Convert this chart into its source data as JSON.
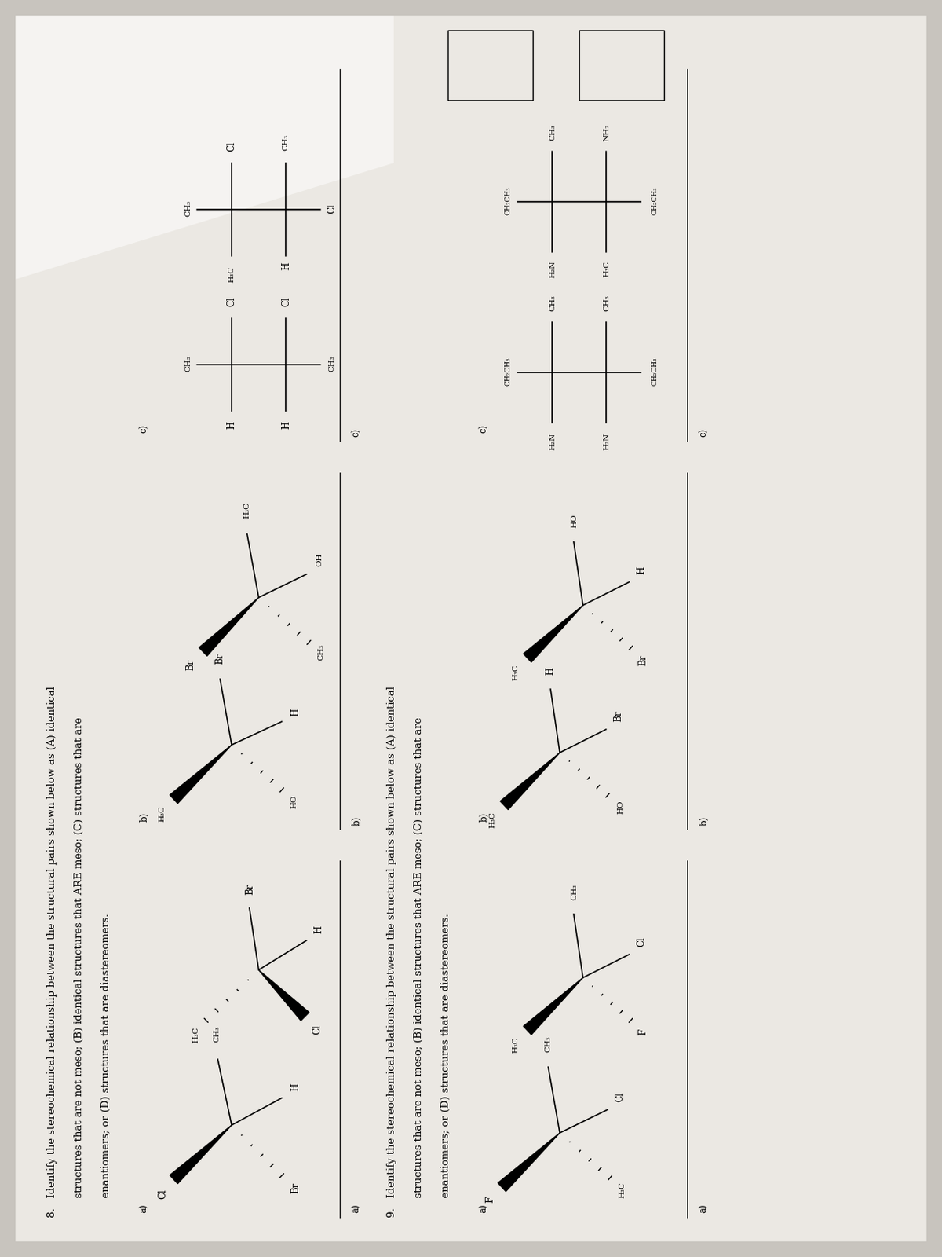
{
  "bg_color": "#c8c4be",
  "page_color": "#ebe8e3",
  "glare_color": "#ffffff",
  "text_color": "#1a1a1a",
  "fs_title": 9.5,
  "fs_body": 8.5,
  "fs_small": 7.5,
  "fs_tiny": 6.5,
  "rotation": 90,
  "q8_line1": "8.   Identify the stereochemical relationship between the structural pairs shown below as (A) identical",
  "q8_line2": "      structures that are not meso; (B) identical structures that ARE meso; (C) structures that are",
  "q8_line3": "      enantiomers; or (D) structures that are diastereomers.",
  "q9_line1": "9.   Identify the stereochemical relationship between the structural pairs shown below as (A) identical",
  "q9_line2": "      structures that are not meso; (B) identical structures that ARE meso; (C) structures that are",
  "q9_line3": "      enantiomers; or (D) structures that are diastereomers."
}
